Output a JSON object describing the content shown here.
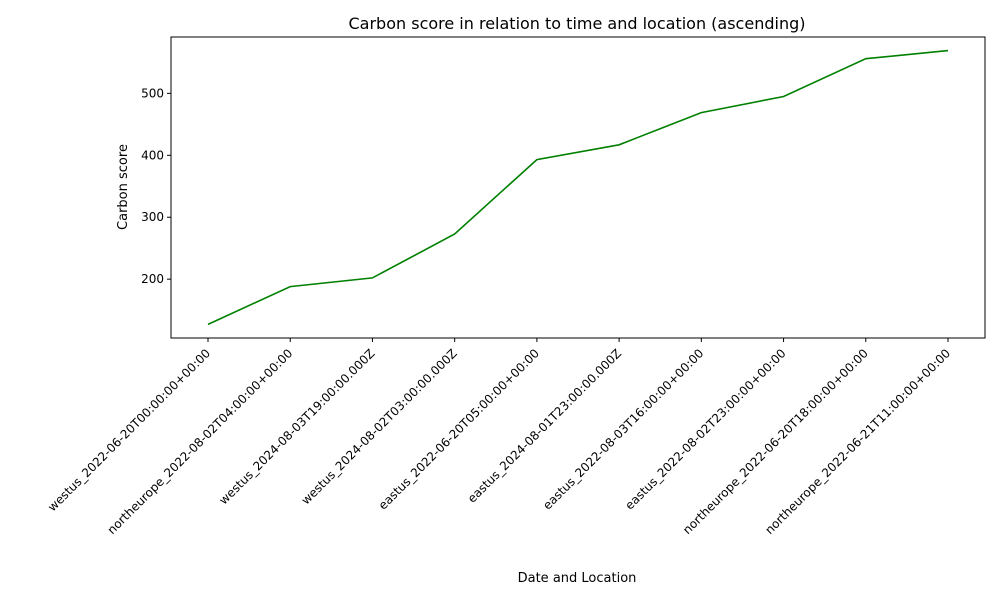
{
  "chart_data": {
    "type": "line",
    "title": "Carbon score in relation to time and location (ascending)",
    "xlabel": "Date and Location",
    "ylabel": "Carbon score",
    "categories": [
      "westus_2022-06-20T00:00:00+00:00",
      "northeurope_2022-08-02T04:00:00+00:00",
      "westus_2024-08-03T19:00:00.000Z",
      "westus_2024-08-02T03:00:00.000Z",
      "eastus_2022-06-20T05:00:00+00:00",
      "eastus_2024-08-01T23:00:00.000Z",
      "eastus_2022-08-03T16:00:00+00:00",
      "eastus_2022-08-02T23:00:00+00:00",
      "northeurope_2022-06-20T18:00:00+00:00",
      "northeurope_2022-06-21T11:00:00+00:00"
    ],
    "series": [
      {
        "values": [
          127,
          188,
          202,
          273,
          393,
          417,
          469,
          495,
          556,
          569
        ],
        "color": "#008000"
      }
    ],
    "yticks": [
      200,
      300,
      400,
      500
    ],
    "ylim": [
      105,
      591
    ],
    "grid": false,
    "legend": "none"
  }
}
